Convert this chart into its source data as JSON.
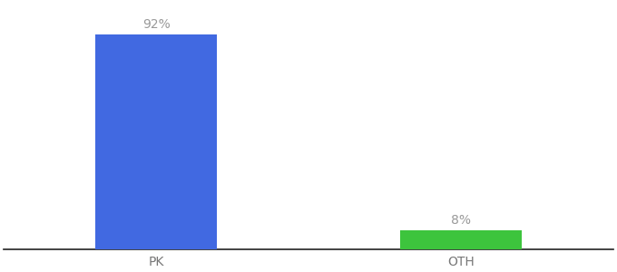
{
  "categories": [
    "PK",
    "OTH"
  ],
  "values": [
    92,
    8
  ],
  "bar_colors": [
    "#4169E1",
    "#3DC43D"
  ],
  "value_labels": [
    "92%",
    "8%"
  ],
  "background_color": "#ffffff",
  "ylim": [
    0,
    105
  ],
  "bar_width": 0.4,
  "label_fontsize": 10,
  "tick_fontsize": 10,
  "label_color": "#999999",
  "tick_color": "#777777"
}
